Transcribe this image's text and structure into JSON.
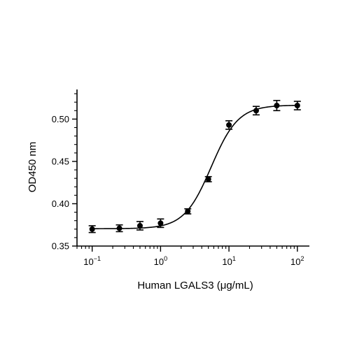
{
  "chart_data": {
    "type": "scatter",
    "title": "",
    "xlabel": "Human LGALS3 (μg/mL)",
    "ylabel": "OD450 nm",
    "x_scale": "log",
    "xlim": [
      0.06,
      150
    ],
    "ylim": [
      0.35,
      0.535
    ],
    "x_ticks": [
      {
        "value": 0.1,
        "base": "10",
        "exp": "−1"
      },
      {
        "value": 1,
        "base": "10",
        "exp": "0"
      },
      {
        "value": 10,
        "base": "10",
        "exp": "1"
      },
      {
        "value": 100,
        "base": "10",
        "exp": "2"
      }
    ],
    "y_ticks": [
      {
        "value": 0.35,
        "label": "0.35"
      },
      {
        "value": 0.4,
        "label": "0.40"
      },
      {
        "value": 0.45,
        "label": "0.45"
      },
      {
        "value": 0.5,
        "label": "0.50"
      }
    ],
    "series": [
      {
        "points": [
          {
            "x": 0.1,
            "y": 0.37,
            "err": 0.004
          },
          {
            "x": 0.25,
            "y": 0.371,
            "err": 0.004
          },
          {
            "x": 0.5,
            "y": 0.374,
            "err": 0.005
          },
          {
            "x": 1,
            "y": 0.377,
            "err": 0.005
          },
          {
            "x": 2.5,
            "y": 0.391,
            "err": 0.003
          },
          {
            "x": 5,
            "y": 0.429,
            "err": 0.003
          },
          {
            "x": 10,
            "y": 0.493,
            "err": 0.005
          },
          {
            "x": 25,
            "y": 0.51,
            "err": 0.005
          },
          {
            "x": 50,
            "y": 0.516,
            "err": 0.006
          },
          {
            "x": 100,
            "y": 0.516,
            "err": 0.005
          }
        ]
      }
    ],
    "fit": {
      "type": "four-parameter logistic",
      "bottom": 0.3705,
      "top": 0.5165,
      "ec50": 5.5,
      "hill": 2.2
    },
    "grid": false,
    "legend": "none",
    "marker_color": "#000000"
  }
}
